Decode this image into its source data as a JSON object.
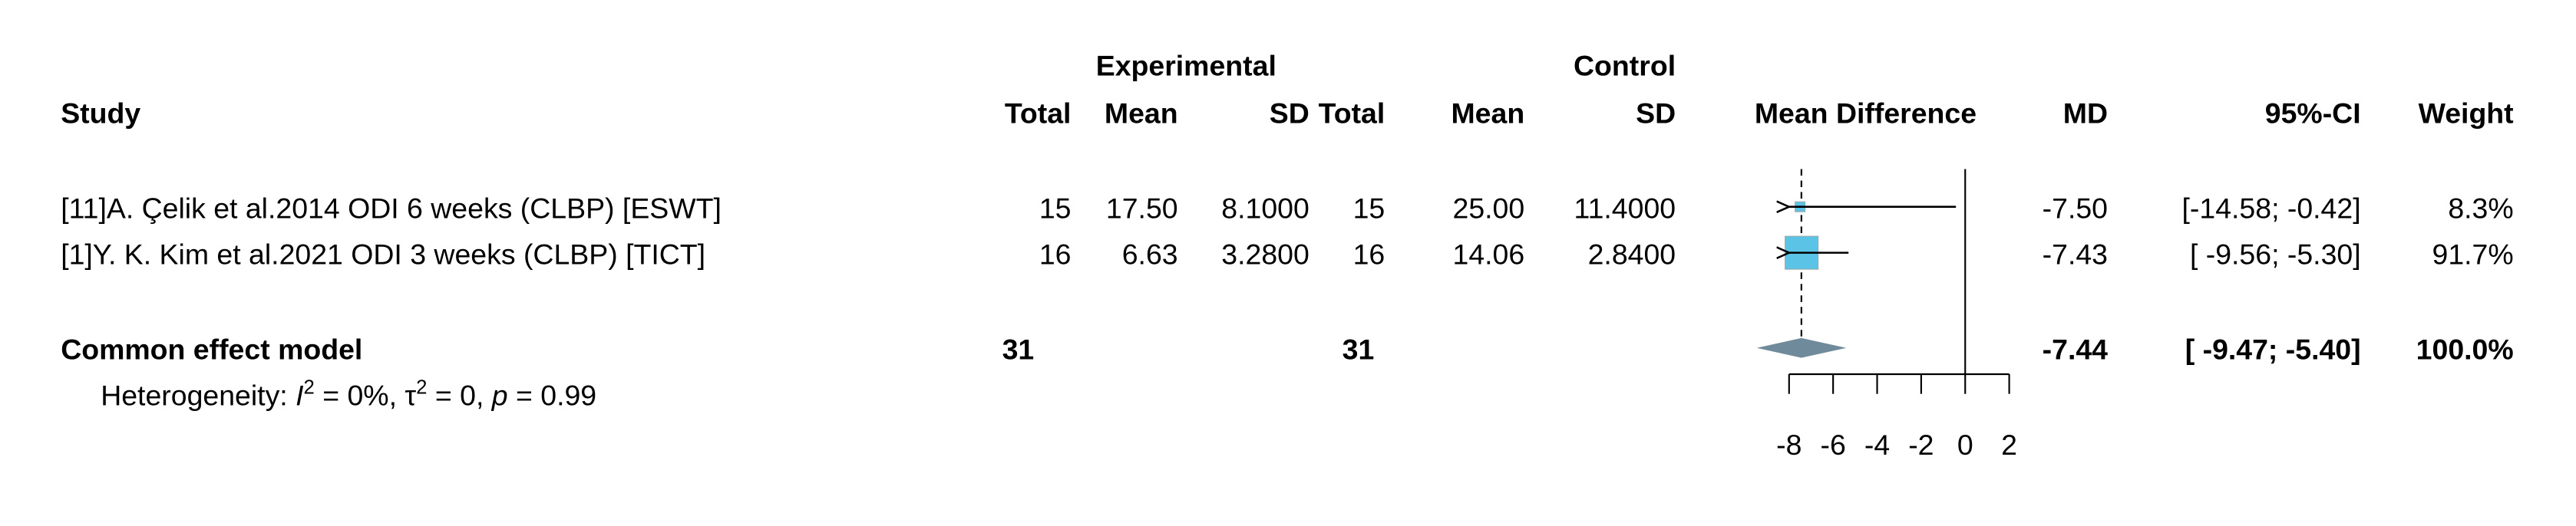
{
  "chart_data": {
    "type": "forest",
    "columns": {
      "study": "Study",
      "exp_group": "Experimental",
      "ctrl_group": "Control",
      "exp": [
        "Total",
        "Mean",
        "SD"
      ],
      "ctrl": [
        "Total",
        "Mean",
        "SD"
      ],
      "effect": "Mean Difference",
      "md": "MD",
      "ci": "95%-CI",
      "weight": "Weight"
    },
    "studies": [
      {
        "label": "[11]A. Çelik et al.2014 ODI 6 weeks (CLBP) [ESWT]",
        "exp": [
          "15",
          "17.50",
          "8.1000"
        ],
        "ctrl": [
          "15",
          "25.00",
          "11.4000"
        ],
        "md": -7.5,
        "md_label": "-7.50",
        "ci": [
          -14.58,
          -0.42
        ],
        "ci_label": "[-14.58; -0.42]",
        "weight": 8.3,
        "weight_label": "8.3%"
      },
      {
        "label": "[1]Y. K. Kim et al.2021 ODI 3 weeks (CLBP) [TICT]",
        "exp": [
          "16",
          "6.63",
          "3.2800"
        ],
        "ctrl": [
          "16",
          "14.06",
          "2.8400"
        ],
        "md": -7.43,
        "md_label": "-7.43",
        "ci": [
          -9.56,
          -5.3
        ],
        "ci_label": "[ -9.56; -5.30]",
        "weight": 91.7,
        "weight_label": "91.7%"
      }
    ],
    "pooled": {
      "label": "Common effect model",
      "exp_total": 31,
      "ctrl_total": 31,
      "md": -7.44,
      "md_label": "-7.44",
      "ci": [
        -9.47,
        -5.4
      ],
      "ci_label": "[ -9.47; -5.40]",
      "weight": 100,
      "weight_label": "100.0%"
    },
    "heterogeneity": [
      "Heterogeneity: ",
      "I",
      "2",
      " = 0%, ",
      "τ",
      "2",
      " = 0, ",
      "p",
      " = 0.99"
    ],
    "xlim": [
      -8,
      2
    ],
    "xticks": [
      -8,
      -6,
      -4,
      -2,
      0,
      2
    ],
    "square_color": "#5bc3e6",
    "diamond_color": "#6f8a9b"
  }
}
